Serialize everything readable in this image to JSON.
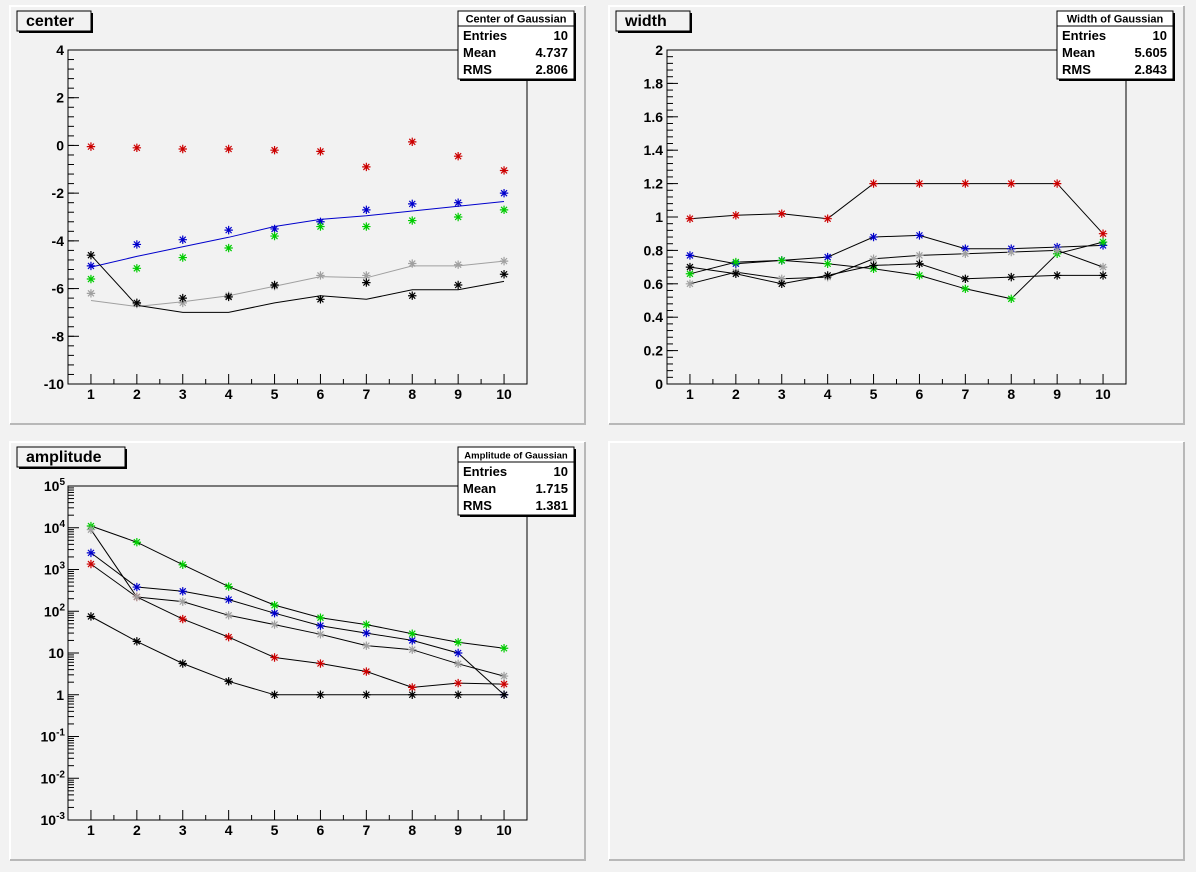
{
  "chart_data": [
    {
      "type": "line",
      "title": "center",
      "x": [
        1,
        2,
        3,
        4,
        5,
        6,
        7,
        8,
        9,
        10
      ],
      "ylim": [
        -10,
        4
      ],
      "yticks": [
        4,
        2,
        0,
        -2,
        -4,
        -6,
        -8,
        -10
      ],
      "log_y": false,
      "stats": {
        "name": "Center of Gaussian",
        "rows": [
          {
            "label": "Entries",
            "value": "10"
          },
          {
            "label": "Mean",
            "value": "4.737"
          },
          {
            "label": "RMS",
            "value": "2.806"
          }
        ]
      },
      "series": [
        {
          "color": "#cc0000",
          "markers": [
            -0.05,
            -0.1,
            -0.15,
            -0.15,
            -0.2,
            -0.25,
            -0.9,
            0.15,
            -0.45,
            -1.05
          ],
          "line": null
        },
        {
          "color": "#0000cc",
          "markers": [
            -5.05,
            -4.15,
            -3.95,
            -3.55,
            -3.5,
            -3.2,
            -2.7,
            -2.45,
            -2.4,
            -2.0
          ],
          "line": [
            -5.1,
            -4.65,
            -4.25,
            -3.85,
            -3.4,
            -3.1,
            -2.95,
            -2.75,
            -2.55,
            -2.35
          ]
        },
        {
          "color": "#00cc00",
          "markers": [
            -5.6,
            -5.15,
            -4.7,
            -4.3,
            -3.8,
            -3.4,
            -3.4,
            -3.15,
            -3.0,
            -2.7
          ],
          "line": null
        },
        {
          "color": "#a0a0a0",
          "markers": [
            -6.2,
            -6.65,
            -6.6,
            -6.3,
            -5.9,
            -5.45,
            -5.45,
            -4.95,
            -5.0,
            -4.85
          ],
          "line": [
            -6.5,
            -6.75,
            -6.55,
            -6.3,
            -5.9,
            -5.5,
            -5.55,
            -5.05,
            -5.05,
            -4.85
          ]
        },
        {
          "color": "#000000",
          "markers": [
            -4.6,
            -6.6,
            -6.4,
            -6.35,
            -5.85,
            -6.45,
            -5.75,
            -6.3,
            -5.85,
            -5.4
          ],
          "line": [
            -4.6,
            -6.7,
            -7.0,
            -7.0,
            -6.6,
            -6.3,
            -6.45,
            -6.05,
            -6.05,
            -5.7
          ]
        }
      ]
    },
    {
      "type": "line",
      "title": "width",
      "x": [
        1,
        2,
        3,
        4,
        5,
        6,
        7,
        8,
        9,
        10
      ],
      "ylim": [
        0,
        2
      ],
      "yticks": [
        2,
        1.8,
        1.6,
        1.4,
        1.2,
        1,
        0.8,
        0.6,
        0.4,
        0.2,
        0
      ],
      "log_y": false,
      "stats": {
        "name": "Width of Gaussian",
        "rows": [
          {
            "label": "Entries",
            "value": "10"
          },
          {
            "label": "Mean",
            "value": "5.605"
          },
          {
            "label": "RMS",
            "value": "2.843"
          }
        ]
      },
      "series": [
        {
          "color": "#cc0000",
          "markers": [
            0.99,
            1.01,
            1.02,
            0.99,
            1.2,
            1.2,
            1.2,
            1.2,
            1.2,
            0.9
          ],
          "line": [
            0.99,
            1.01,
            1.02,
            0.99,
            1.2,
            1.2,
            1.2,
            1.2,
            1.2,
            0.9
          ]
        },
        {
          "color": "#0000cc",
          "markers": [
            0.77,
            0.72,
            0.74,
            0.76,
            0.88,
            0.89,
            0.81,
            0.81,
            0.82,
            0.83
          ],
          "line": [
            0.77,
            0.72,
            0.74,
            0.76,
            0.88,
            0.89,
            0.81,
            0.81,
            0.82,
            0.83
          ]
        },
        {
          "color": "#00cc00",
          "markers": [
            0.66,
            0.73,
            0.74,
            0.72,
            0.69,
            0.65,
            0.57,
            0.51,
            0.78,
            0.85
          ],
          "line": [
            0.66,
            0.73,
            0.74,
            0.72,
            0.69,
            0.65,
            0.57,
            0.51,
            0.78,
            0.85
          ]
        },
        {
          "color": "#a0a0a0",
          "markers": [
            0.6,
            0.67,
            0.63,
            0.64,
            0.75,
            0.77,
            0.78,
            0.79,
            0.8,
            0.7
          ],
          "line": [
            0.6,
            0.67,
            0.63,
            0.64,
            0.75,
            0.77,
            0.78,
            0.79,
            0.8,
            0.7
          ]
        },
        {
          "color": "#000000",
          "markers": [
            0.7,
            0.66,
            0.6,
            0.65,
            0.71,
            0.72,
            0.63,
            0.64,
            0.65,
            0.65
          ],
          "line": [
            0.7,
            0.66,
            0.6,
            0.65,
            0.71,
            0.72,
            0.63,
            0.64,
            0.65,
            0.65
          ]
        }
      ]
    },
    {
      "type": "line",
      "title": "amplitude",
      "x": [
        1,
        2,
        3,
        4,
        5,
        6,
        7,
        8,
        9,
        10
      ],
      "ylim": [
        0.001,
        100000
      ],
      "log_y": true,
      "ytick_labels": [
        {
          "value": 100000,
          "base": "10",
          "exp": "5"
        },
        {
          "value": 10000,
          "base": "10",
          "exp": "4"
        },
        {
          "value": 1000,
          "base": "10",
          "exp": "3"
        },
        {
          "value": 100,
          "base": "10",
          "exp": "2"
        },
        {
          "value": 10,
          "base": "10",
          "exp": ""
        },
        {
          "value": 1,
          "base": "1",
          "exp": ""
        },
        {
          "value": 0.1,
          "base": "10",
          "exp": "-1"
        },
        {
          "value": 0.01,
          "base": "10",
          "exp": "-2"
        },
        {
          "value": 0.001,
          "base": "10",
          "exp": "-3"
        }
      ],
      "stats": {
        "name": "Amplitude of Gaussian",
        "rows": [
          {
            "label": "Entries",
            "value": "10"
          },
          {
            "label": "Mean",
            "value": "1.715"
          },
          {
            "label": "RMS",
            "value": "1.381"
          }
        ]
      },
      "series": [
        {
          "color": "#cc0000",
          "markers": [
            1350,
            220,
            65,
            24,
            7.8,
            5.6,
            3.6,
            1.5,
            1.9,
            1.8
          ],
          "line": [
            1350,
            220,
            65,
            24,
            7.8,
            5.6,
            3.6,
            1.5,
            1.9,
            1.8
          ]
        },
        {
          "color": "#0000cc",
          "markers": [
            2500,
            380,
            300,
            190,
            90,
            45,
            30,
            20,
            10,
            1.0
          ],
          "line": [
            2500,
            380,
            300,
            190,
            90,
            45,
            30,
            20,
            10,
            1.0
          ]
        },
        {
          "color": "#00cc00",
          "markers": [
            11000,
            4500,
            1300,
            390,
            140,
            70,
            48,
            29,
            18,
            13
          ],
          "line": [
            11000,
            4500,
            1300,
            390,
            140,
            70,
            48,
            29,
            18,
            13
          ]
        },
        {
          "color": "#a0a0a0",
          "markers": [
            9000,
            220,
            170,
            80,
            48,
            28,
            15,
            12,
            5.5,
            2.8
          ],
          "line": [
            9000,
            220,
            170,
            80,
            48,
            28,
            15,
            12,
            5.5,
            2.8
          ]
        },
        {
          "color": "#000000",
          "markers": [
            75,
            19,
            5.6,
            2.1,
            1.0,
            1.0,
            1.0,
            1.0,
            1.0,
            1.0
          ],
          "line": [
            75,
            19,
            5.6,
            2.1,
            1.0,
            1.0,
            1.0,
            1.0,
            1.0,
            1.0
          ]
        }
      ]
    }
  ]
}
